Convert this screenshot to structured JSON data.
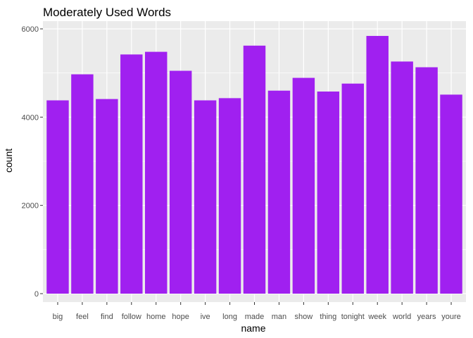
{
  "chart_data": {
    "type": "bar",
    "title": "Moderately Used Words",
    "xlabel": "name",
    "ylabel": "count",
    "categories": [
      "big",
      "feel",
      "find",
      "follow",
      "home",
      "hope",
      "ive",
      "long",
      "made",
      "man",
      "show",
      "thing",
      "tonight",
      "week",
      "world",
      "years",
      "youre"
    ],
    "values": [
      4380,
      4970,
      4410,
      5420,
      5480,
      5050,
      4380,
      4430,
      5620,
      4600,
      4890,
      4580,
      4760,
      5840,
      5260,
      5130,
      4510
    ],
    "ylim": [
      0,
      6200
    ],
    "yticks": [
      0,
      2000,
      4000,
      6000
    ],
    "bar_color": "#A020F0",
    "panel_background": "#EBEBEB",
    "grid_color": "#FFFFFF",
    "grid": true,
    "legend": "none"
  }
}
